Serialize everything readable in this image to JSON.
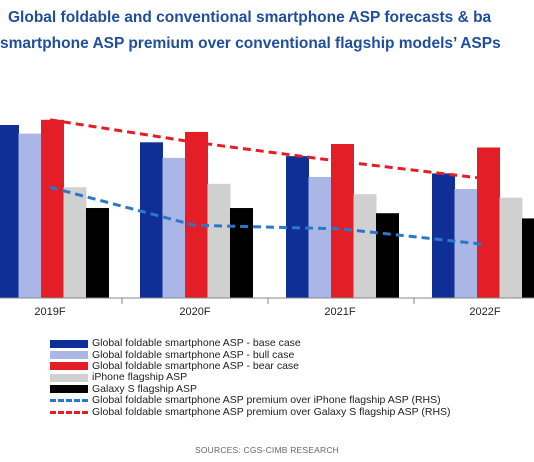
{
  "title_line1": "Global foldable and conventional smartphone ASP forecasts & ba",
  "title_line2": "smartphone ASP premium over conventional flagship models’ ASPs",
  "source": "SOURCES: CGS-CIMB RESEARCH",
  "colors": {
    "title": "#1f4e9c",
    "base": "#0f2f96",
    "bull": "#a9b6e6",
    "bear": "#e41e26",
    "iphone": "#d0d0d0",
    "galaxy": "#000000",
    "premium_iphone": "#2a78c8",
    "premium_galaxy": "#e41e26"
  },
  "legend": [
    {
      "label": "Global foldable smartphone ASP - base case",
      "color": "#0f2f96",
      "kind": "bar"
    },
    {
      "label": "Global foldable smartphone ASP - bull case",
      "color": "#a9b6e6",
      "kind": "bar"
    },
    {
      "label": "Global foldable smartphone ASP - bear case",
      "color": "#e41e26",
      "kind": "bar"
    },
    {
      "label": "iPhone flagship ASP",
      "color": "#d0d0d0",
      "kind": "bar"
    },
    {
      "label": "Galaxy S flagship ASP",
      "color": "#000000",
      "kind": "bar"
    },
    {
      "label": "Global foldable smartphone ASP premium over iPhone flagship ASP (RHS)",
      "color": "#2a78c8",
      "kind": "line"
    },
    {
      "label": "Global foldable smartphone ASP premium over Galaxy S flagship ASP (RHS)",
      "color": "#e41e26",
      "kind": "line"
    }
  ],
  "chart_data": {
    "type": "bar",
    "categories": [
      "2019F",
      "2020F",
      "2021F",
      "2022F"
    ],
    "ylim": [
      0,
      100
    ],
    "series": [
      {
        "name": "Global foldable smartphone ASP - base case",
        "values": [
          100,
          90,
          82,
          72
        ]
      },
      {
        "name": "Global foldable smartphone ASP - bull case",
        "values": [
          95,
          81,
          70,
          63
        ]
      },
      {
        "name": "Global foldable smartphone ASP - bear case",
        "values": [
          103,
          96,
          89,
          87
        ]
      },
      {
        "name": "iPhone flagship ASP",
        "values": [
          64,
          66,
          60,
          58
        ]
      },
      {
        "name": "Galaxy S flagship ASP",
        "values": [
          52,
          52,
          49,
          46
        ]
      }
    ],
    "lines": {
      "ylim": [
        0,
        100
      ],
      "series": [
        {
          "name": "Global foldable smartphone ASP premium over iPhone flagship ASP (RHS)",
          "values": [
            64,
            42,
            40,
            31
          ]
        },
        {
          "name": "Global foldable smartphone ASP premium over Galaxy S flagship ASP (RHS)",
          "values": [
            103,
            90,
            79,
            69
          ]
        }
      ]
    }
  }
}
